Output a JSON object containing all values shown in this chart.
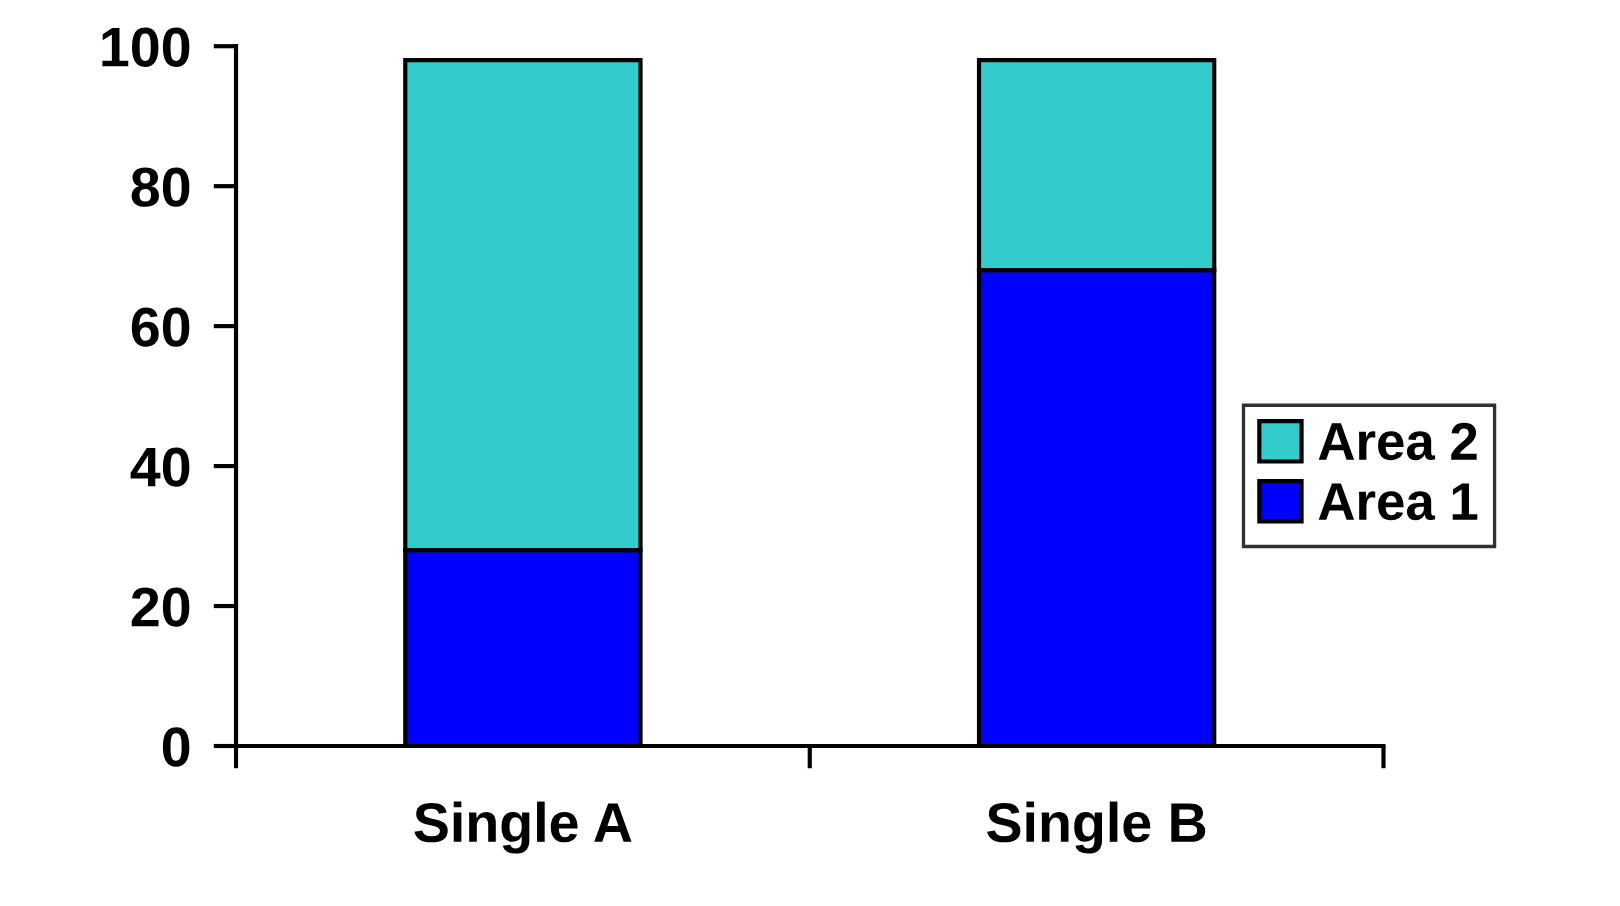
{
  "chart_data": {
    "type": "bar",
    "stacked": true,
    "categories": [
      "Single A",
      "Single B"
    ],
    "series": [
      {
        "name": "Area 1",
        "color": "#0000ff",
        "values": [
          28,
          68
        ]
      },
      {
        "name": "Area 2",
        "color": "#33cccc",
        "values": [
          70,
          30
        ]
      }
    ],
    "ylim": [
      0,
      100
    ],
    "yticks": [
      0,
      20,
      40,
      60,
      80,
      100
    ],
    "grid": false,
    "legend": "right"
  }
}
